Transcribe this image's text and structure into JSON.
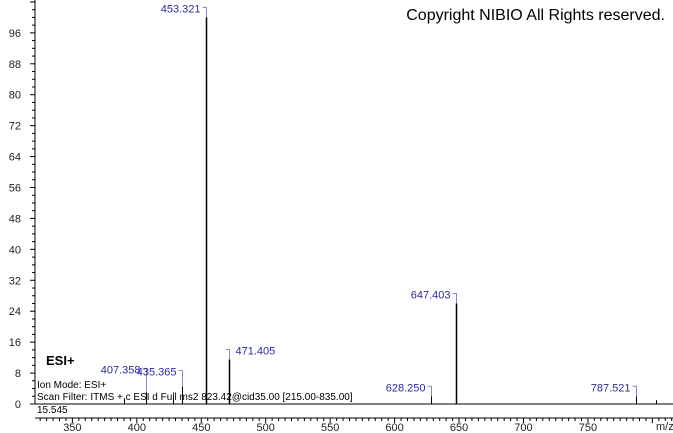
{
  "copyright": "Copyright NIBIO All Rights reserved.",
  "info": {
    "mode_tag": "ESI+",
    "ion_mode": "Ion Mode: ESI+",
    "scan_filter": "Scan Filter: ITMS + c ESI d Full ms2 823.42@cid35.00 [215.00-835.00]",
    "retention": "15.545"
  },
  "chart_data": {
    "type": "bar",
    "title": "",
    "xlabel": "m/z",
    "ylabel": "",
    "xlim": [
      321,
      816
    ],
    "ylim": [
      0,
      104.5
    ],
    "xticks": [
      350,
      400,
      450,
      500,
      550,
      600,
      650,
      700,
      750
    ],
    "yticks": [
      0,
      8,
      16,
      24,
      32,
      40,
      48,
      56,
      64,
      72,
      80,
      88,
      96
    ],
    "peaks": [
      {
        "mz": 390.0,
        "intensity": 1.5,
        "label": ""
      },
      {
        "mz": 407.358,
        "intensity": 3.0,
        "label": "407.358"
      },
      {
        "mz": 428.0,
        "intensity": 1.5,
        "label": ""
      },
      {
        "mz": 435.365,
        "intensity": 4.5,
        "label": "435.365"
      },
      {
        "mz": 453.321,
        "intensity": 100,
        "label": "453.321"
      },
      {
        "mz": 471.405,
        "intensity": 11.5,
        "label": "471.405"
      },
      {
        "mz": 628.25,
        "intensity": 2.0,
        "label": "628.250"
      },
      {
        "mz": 647.403,
        "intensity": 26.0,
        "label": "647.403"
      },
      {
        "mz": 787.521,
        "intensity": 2.0,
        "label": "787.521"
      },
      {
        "mz": 803.0,
        "intensity": 1.0,
        "label": ""
      }
    ]
  }
}
